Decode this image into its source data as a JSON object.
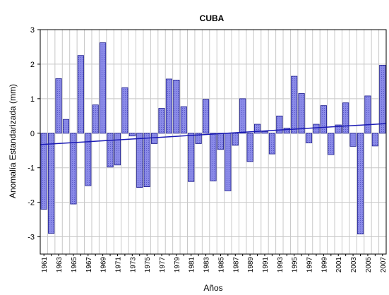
{
  "chart_data": {
    "type": "bar",
    "title": "CUBA",
    "y_label": "Anomalía Estandarizada (mm)",
    "x_label": "Años",
    "categories": [
      "1961",
      null,
      "1963",
      null,
      "1965",
      null,
      "1967",
      null,
      "1969",
      null,
      "1971",
      null,
      "1973",
      null,
      "1975",
      null,
      "1977",
      null,
      "1979",
      null,
      "1981",
      null,
      "1983",
      null,
      "1985",
      null,
      "1987",
      null,
      "1989",
      null,
      "1991",
      null,
      "1993",
      null,
      "1995",
      null,
      "1997",
      null,
      "1999",
      null,
      "2001",
      null,
      "2003",
      null,
      "2005",
      null,
      "2007"
    ],
    "values": [
      -2.2,
      -2.9,
      1.58,
      0.4,
      -2.05,
      2.25,
      -1.52,
      0.82,
      2.62,
      -0.98,
      -0.92,
      1.32,
      -0.08,
      -1.57,
      -1.55,
      -0.3,
      0.72,
      1.57,
      1.54,
      0.77,
      -1.4,
      -0.3,
      0.98,
      -1.38,
      -0.47,
      -1.67,
      -0.35,
      1.0,
      -0.82,
      0.26,
      0.05,
      -0.6,
      0.5,
      0.15,
      1.65,
      1.15,
      -0.28,
      0.26,
      0.8,
      -0.62,
      0.24,
      0.88,
      -0.38,
      -2.92,
      1.08,
      -0.37,
      1.97
    ],
    "color": "#8a8ae8",
    "edge_color": "#1a1a8c",
    "trend_line": {
      "start": -0.33,
      "end": 0.28,
      "color": "#1a1ab4"
    },
    "ylim": [
      -3.5,
      3
    ],
    "yticks": [
      -3,
      -2,
      -1,
      0,
      1,
      2,
      3
    ],
    "grid": true
  }
}
